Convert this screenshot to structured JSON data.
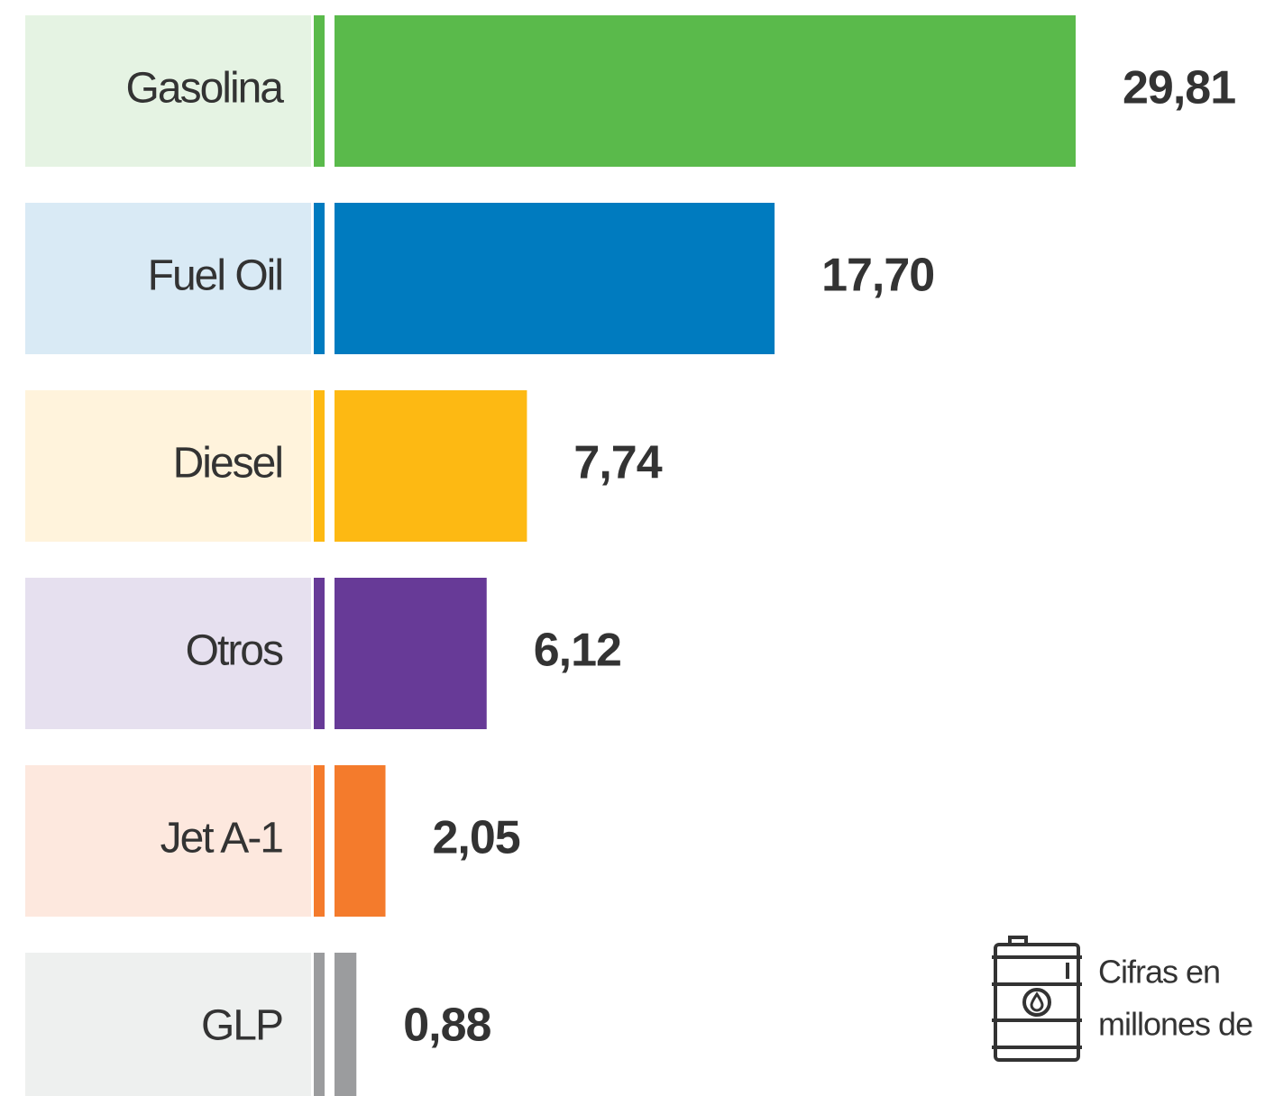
{
  "chart_data": {
    "type": "bar",
    "orientation": "horizontal",
    "categories": [
      "Gasolina",
      "Fuel Oil",
      "Diesel",
      "Otros",
      "Jet A-1",
      "GLP"
    ],
    "values": [
      29.81,
      17.7,
      7.74,
      6.12,
      2.05,
      0.88
    ],
    "value_labels": [
      "29,81",
      "17,70",
      "7,74",
      "6,12",
      "2,05",
      "0,88"
    ],
    "colors": [
      "#5aba4b",
      "#007bbf",
      "#fdb913",
      "#673a97",
      "#f47b2c",
      "#9b9c9e"
    ],
    "background_colors": [
      "#e5f3e3",
      "#d9eaf5",
      "#fff3dc",
      "#e6e0ef",
      "#fde8de",
      "#eef0ef"
    ],
    "note": [
      "Cifras en",
      "millones de"
    ]
  }
}
